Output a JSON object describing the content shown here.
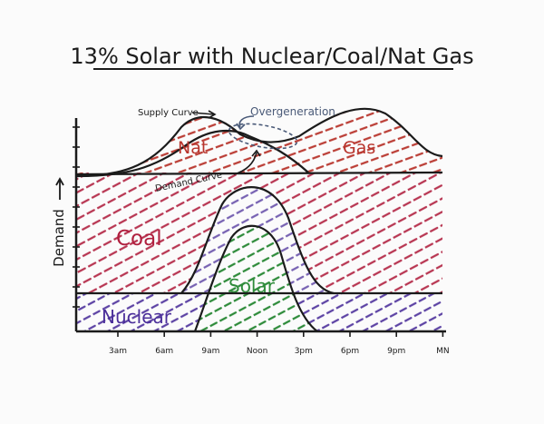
{
  "title": "13% Solar with Nuclear/Coal/Nat Gas",
  "axis": {
    "ylabel": "Demand",
    "xticks": [
      "3am",
      "6am",
      "9am",
      "Noon",
      "3pm",
      "6pm",
      "9pm",
      "MN"
    ]
  },
  "regions": {
    "nat": "Nat",
    "gas": "Gas",
    "coal": "Coal",
    "solar": "Solar",
    "nuclear": "Nuclear"
  },
  "annotations": {
    "supply_curve": "Supply Curve",
    "overgeneration": "Overgeneration",
    "demand_curve": "Demand Curve"
  },
  "colors": {
    "ink": "#1b1b1b",
    "gas": "#b8342c",
    "coal": "#b0203f",
    "solar": "#2e8b3a",
    "nuclear": "#4b2f9a",
    "annotation": "#4a5a78",
    "paper": "#fbfbfb"
  }
}
